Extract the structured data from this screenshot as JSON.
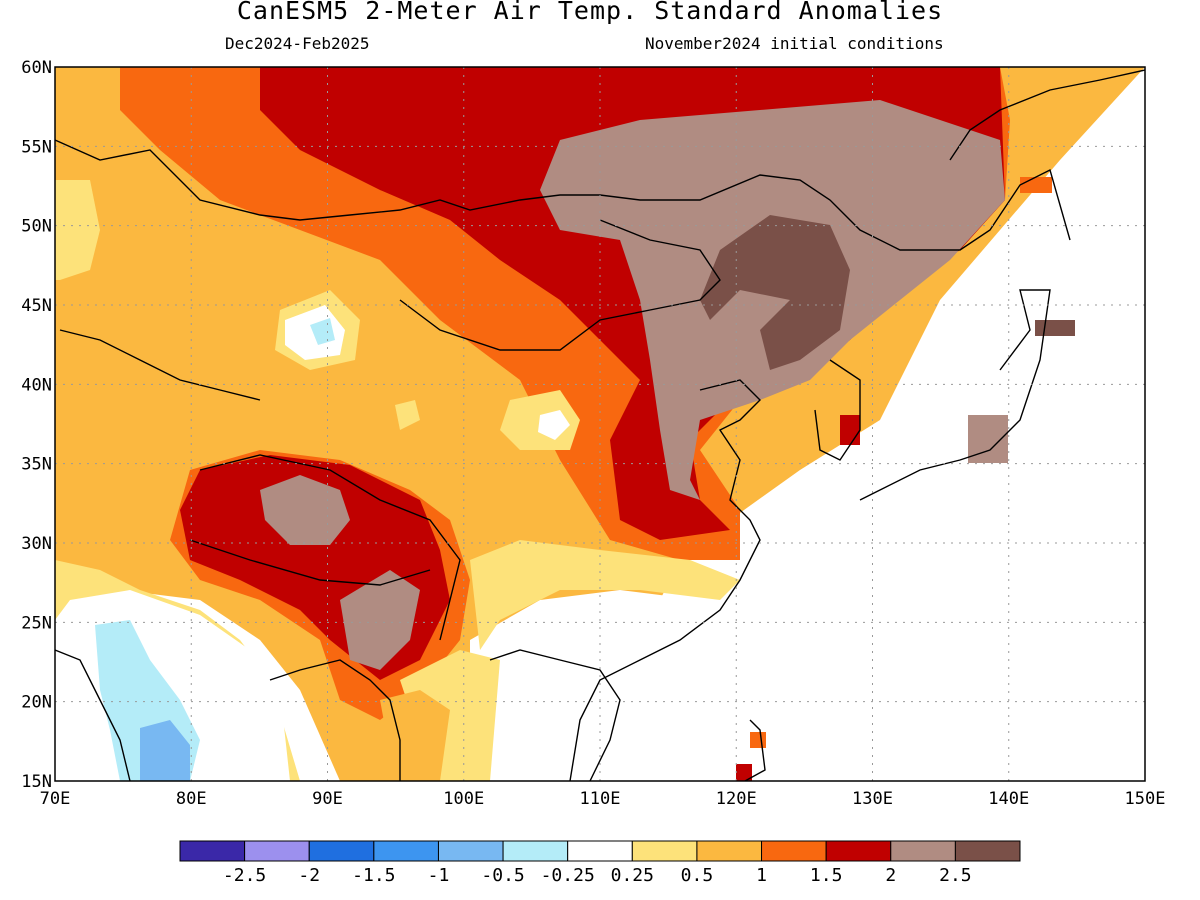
{
  "title": "CanESM5 2-Meter Air Temp. Standard Anomalies",
  "subtitle_left": "Dec2024-Feb2025",
  "subtitle_right": "November2024 initial conditions",
  "lat_labels": [
    "60N",
    "55N",
    "50N",
    "45N",
    "40N",
    "35N",
    "30N",
    "25N",
    "20N",
    "15N"
  ],
  "lon_labels": [
    "70E",
    "80E",
    "90E",
    "100E",
    "110E",
    "120E",
    "130E",
    "140E",
    "150E"
  ],
  "colorbar": {
    "colors": [
      "#3a28a8",
      "#9c90ee",
      "#1f6fe0",
      "#3d95f0",
      "#78b8f2",
      "#b4ecf8",
      "#ffffff",
      "#fde27a",
      "#fbb840",
      "#f86810",
      "#c00000",
      "#b08c82",
      "#7a5048"
    ],
    "labels": [
      "-2.5",
      "-2",
      "-1.5",
      "-1",
      "-0.5",
      "-0.25",
      "0.25",
      "0.5",
      "1",
      "1.5",
      "2",
      "2.5"
    ]
  }
}
